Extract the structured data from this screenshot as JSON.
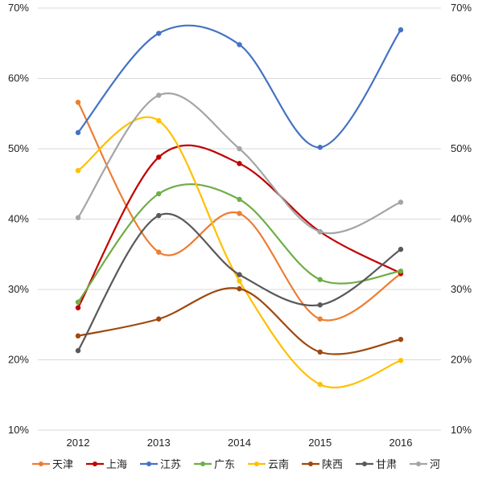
{
  "chart_data": {
    "type": "line",
    "smooth": true,
    "categories": [
      "2012",
      "2013",
      "2014",
      "2015",
      "2016"
    ],
    "ylim": [
      10,
      70
    ],
    "yticks": [
      10,
      20,
      30,
      40,
      50,
      60,
      70
    ],
    "ytick_labels": [
      "10%",
      "20%",
      "30%",
      "40%",
      "50%",
      "60%",
      "70%"
    ],
    "y_axis_on_both_sides": true,
    "grid": true,
    "legend_position": "bottom",
    "series": [
      {
        "name": "天津",
        "color": "#ED7D31",
        "values": [
          56.6,
          35.3,
          40.8,
          25.8,
          32.2
        ]
      },
      {
        "name": "上海",
        "color": "#C00000",
        "values": [
          27.4,
          48.8,
          47.9,
          38.2,
          32.3
        ]
      },
      {
        "name": "江苏",
        "color": "#4472C4",
        "values": [
          52.3,
          66.4,
          64.8,
          50.2,
          66.9
        ]
      },
      {
        "name": "广东",
        "color": "#70AD47",
        "values": [
          28.2,
          43.6,
          42.8,
          31.4,
          32.6
        ]
      },
      {
        "name": "云南",
        "color": "#FFC000",
        "values": [
          46.9,
          54.0,
          31.2,
          16.5,
          19.9
        ]
      },
      {
        "name": "陕西",
        "color": "#9E480E",
        "values": [
          23.4,
          25.8,
          30.1,
          21.1,
          22.9
        ]
      },
      {
        "name": "甘肃",
        "color": "#595959",
        "values": [
          21.3,
          40.5,
          32.1,
          27.8,
          35.7
        ]
      },
      {
        "name": "河",
        "color": "#A5A5A5",
        "values": [
          40.2,
          57.6,
          50.0,
          38.2,
          42.4
        ]
      }
    ]
  }
}
